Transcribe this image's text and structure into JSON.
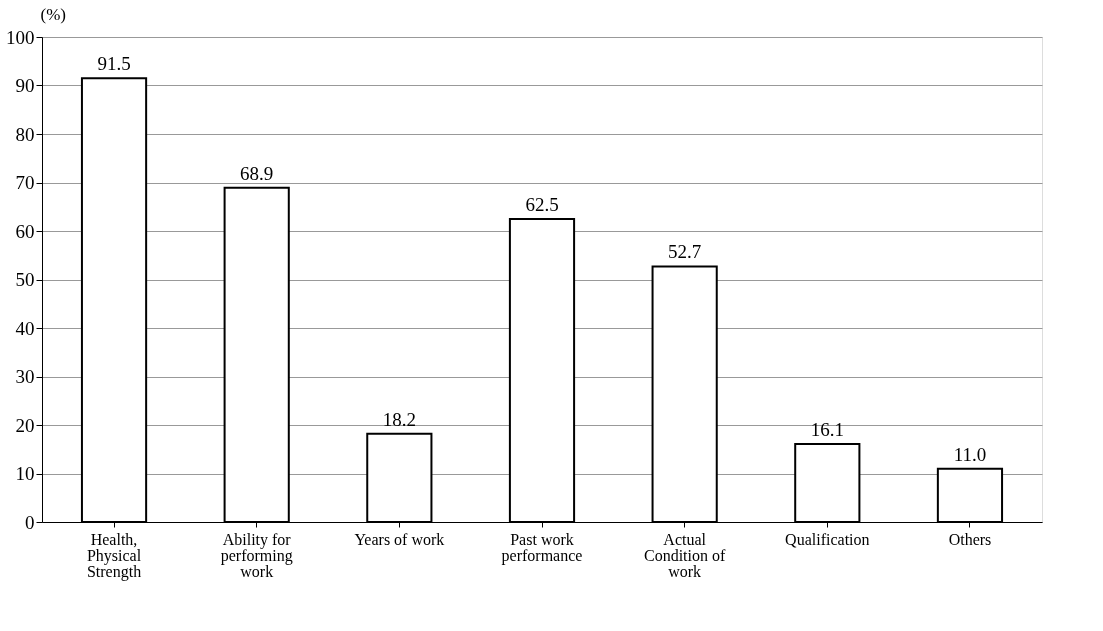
{
  "chart_data": {
    "type": "bar",
    "ylabel": "(%)",
    "categories": [
      "Health,\nPhysical\nStrength",
      "Ability for\nperforming\nwork",
      "Years of work",
      "Past work\nperformance",
      "Actual\nCondition of\nwork",
      "Qualification",
      "Others"
    ],
    "values": [
      91.5,
      68.9,
      18.2,
      62.5,
      52.7,
      16.1,
      11.0
    ],
    "value_labels": [
      "91.5",
      "68.9",
      "18.2",
      "62.5",
      "52.7",
      "16.1",
      "11.0"
    ],
    "color": "#ffffff",
    "ylim": [
      0,
      100
    ],
    "yticks": [
      0,
      10,
      20,
      30,
      40,
      50,
      60,
      70,
      80,
      90,
      100
    ],
    "grid": "y"
  }
}
